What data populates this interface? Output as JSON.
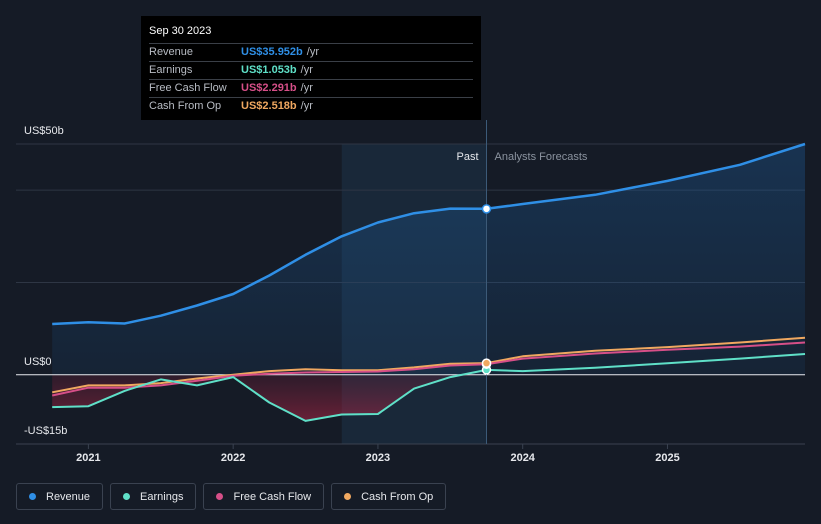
{
  "tooltip": {
    "date": "Sep 30 2023",
    "rows": [
      {
        "label": "Revenue",
        "value": "US$35.952b",
        "unit": "/yr",
        "color": "#2f8fe6"
      },
      {
        "label": "Earnings",
        "value": "US$1.053b",
        "unit": "/yr",
        "color": "#5fe0c8"
      },
      {
        "label": "Free Cash Flow",
        "value": "US$2.291b",
        "unit": "/yr",
        "color": "#d64f88"
      },
      {
        "label": "Cash From Op",
        "value": "US$2.518b",
        "unit": "/yr",
        "color": "#f0a860"
      }
    ]
  },
  "legend": [
    {
      "label": "Revenue",
      "color": "#2f8fe6"
    },
    {
      "label": "Earnings",
      "color": "#5fe0c8"
    },
    {
      "label": "Free Cash Flow",
      "color": "#d64f88"
    },
    {
      "label": "Cash From Op",
      "color": "#f0a860"
    }
  ],
  "chart_data": {
    "type": "line",
    "y_labels": [
      "US$50b",
      "US$0",
      "-US$15b"
    ],
    "ylim": [
      -15,
      50
    ],
    "x_ticks": [
      "2021",
      "2022",
      "2023",
      "2024",
      "2025"
    ],
    "x_tick_values": [
      2021.0,
      2022.0,
      2023.0,
      2024.0,
      2025.0
    ],
    "xlim": [
      2020.5,
      2025.95
    ],
    "past_label": "Past",
    "forecast_label": "Analysts Forecasts",
    "past_end": 2023.75,
    "highlight_start": 2022.75,
    "grid": true,
    "series": [
      {
        "name": "Revenue",
        "color": "#2f8fe6",
        "x": [
          2020.75,
          2021.0,
          2021.25,
          2021.5,
          2021.75,
          2022.0,
          2022.25,
          2022.5,
          2022.75,
          2023.0,
          2023.25,
          2023.5,
          2023.75,
          2024.0,
          2024.5,
          2025.0,
          2025.5,
          2025.95
        ],
        "y": [
          11.0,
          11.4,
          11.1,
          12.8,
          15.0,
          17.5,
          21.5,
          26.0,
          30.0,
          33.0,
          35.0,
          36.0,
          35.952,
          37.0,
          39.0,
          42.0,
          45.5,
          50.0
        ]
      },
      {
        "name": "Earnings",
        "color": "#5fe0c8",
        "x": [
          2020.75,
          2021.0,
          2021.25,
          2021.5,
          2021.75,
          2022.0,
          2022.25,
          2022.5,
          2022.75,
          2023.0,
          2023.25,
          2023.5,
          2023.75,
          2024.0,
          2024.5,
          2025.0,
          2025.5,
          2025.95
        ],
        "y": [
          -7.0,
          -6.8,
          -3.5,
          -1.0,
          -2.3,
          -0.5,
          -6.0,
          -10.0,
          -8.6,
          -8.5,
          -3.0,
          -0.5,
          1.053,
          0.8,
          1.5,
          2.5,
          3.5,
          4.5
        ]
      },
      {
        "name": "Free Cash Flow",
        "color": "#d64f88",
        "x": [
          2020.75,
          2021.0,
          2021.25,
          2021.5,
          2021.75,
          2022.0,
          2022.25,
          2022.5,
          2022.75,
          2023.0,
          2023.25,
          2023.5,
          2023.75,
          2024.0,
          2024.5,
          2025.0,
          2025.5,
          2025.95
        ],
        "y": [
          -4.5,
          -2.8,
          -2.8,
          -2.3,
          -1.3,
          -0.2,
          0.2,
          0.5,
          0.6,
          0.7,
          1.2,
          2.0,
          2.291,
          3.5,
          4.6,
          5.4,
          6.1,
          7.0
        ]
      },
      {
        "name": "Cash From Op",
        "color": "#f0a860",
        "x": [
          2020.75,
          2021.0,
          2021.25,
          2021.5,
          2021.75,
          2022.0,
          2022.25,
          2022.5,
          2022.75,
          2023.0,
          2023.25,
          2023.5,
          2023.75,
          2024.0,
          2024.5,
          2025.0,
          2025.5,
          2025.95
        ],
        "y": [
          -3.8,
          -2.3,
          -2.3,
          -1.8,
          -0.8,
          0.0,
          0.8,
          1.2,
          1.0,
          1.0,
          1.6,
          2.4,
          2.518,
          4.0,
          5.2,
          6.0,
          7.0,
          8.0
        ]
      }
    ]
  }
}
